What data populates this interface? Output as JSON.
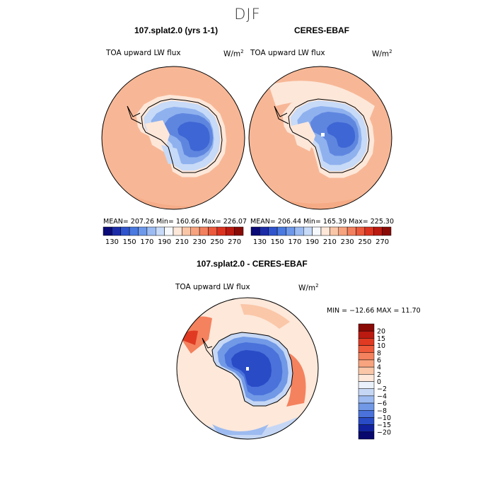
{
  "season": "DJF",
  "panels": [
    {
      "title": "107.splat2.0 (yrs 1-1)",
      "variable": "TOA upward LW flux",
      "units": "W/m",
      "units_exp": "2",
      "stats": "MEAN= 207.26  Min= 160.66  Max= 226.07"
    },
    {
      "title": "CERES-EBAF",
      "variable": "TOA upward LW flux",
      "units": "W/m",
      "units_exp": "2",
      "stats": "MEAN= 206.44  Min= 165.39  Max= 225.30"
    },
    {
      "title": "107.splat2.0 - CERES-EBAF",
      "variable": "TOA upward LW flux",
      "units": "W/m",
      "units_exp": "2",
      "stats": "MIN = −12.66 MAX =  11.70"
    }
  ],
  "abs_colorbar": {
    "labels": [
      "130",
      "150",
      "170",
      "190",
      "210",
      "230",
      "250",
      "270"
    ],
    "colors": [
      "#0a0a78",
      "#1c2ca8",
      "#2f54cc",
      "#4a7ae0",
      "#6e99ea",
      "#9bbbf2",
      "#c7daf7",
      "#f5f9fd",
      "#fde7d9",
      "#f9c6a8",
      "#f7a37f",
      "#f2805e",
      "#eb5a3c",
      "#dc3320",
      "#bb1a10",
      "#8a0a06"
    ]
  },
  "diff_colorbar": {
    "labels": [
      "20",
      "15",
      "10",
      "8",
      "6",
      "4",
      "2",
      "0",
      "−2",
      "−4",
      "−6",
      "−8",
      "−10",
      "−15",
      "−20"
    ],
    "colors": [
      "#8a0a06",
      "#bb1a10",
      "#e03a22",
      "#ee5a3a",
      "#f4825e",
      "#f8a47f",
      "#fac7a8",
      "#fde8da",
      "#eaf1fb",
      "#c5d7f5",
      "#9dbbf0",
      "#7199e6",
      "#4a72da",
      "#2a4bc6",
      "#12229e",
      "#07076e"
    ]
  }
}
